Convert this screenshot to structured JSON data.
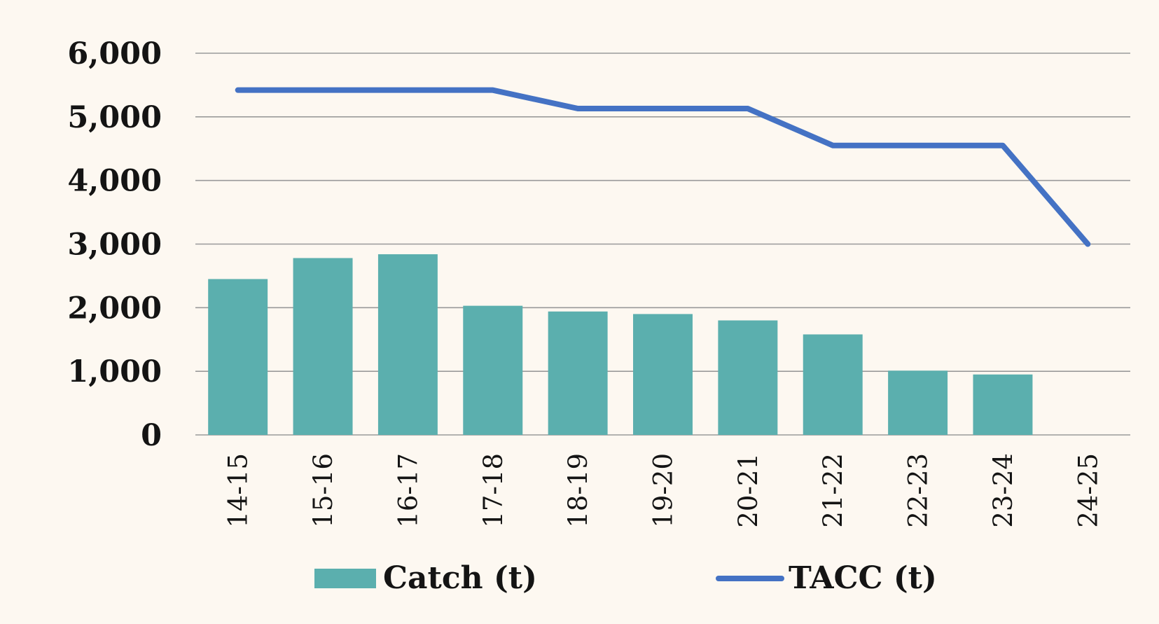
{
  "chart_data": {
    "type": "bar",
    "categories": [
      "14-15",
      "15-16",
      "16-17",
      "17-18",
      "18-19",
      "19-20",
      "20-21",
      "21-22",
      "22-23",
      "23-24",
      "24-25"
    ],
    "series": [
      {
        "name": "Catch (t)",
        "type": "bar",
        "color": "#5bafae",
        "values": [
          2450,
          2780,
          2840,
          2030,
          1940,
          1900,
          1800,
          1580,
          1010,
          950,
          null
        ]
      },
      {
        "name": "TACC (t)",
        "type": "line",
        "color": "#4472c4",
        "values": [
          5420,
          5420,
          5420,
          5420,
          5130,
          5130,
          5130,
          4550,
          4550,
          4550,
          3000
        ]
      }
    ],
    "yticks": [
      "0",
      "1,000",
      "2,000",
      "3,000",
      "4,000",
      "5,000",
      "6,000"
    ],
    "ylim": [
      0,
      6000
    ],
    "grid": true,
    "legend_position": "bottom"
  }
}
